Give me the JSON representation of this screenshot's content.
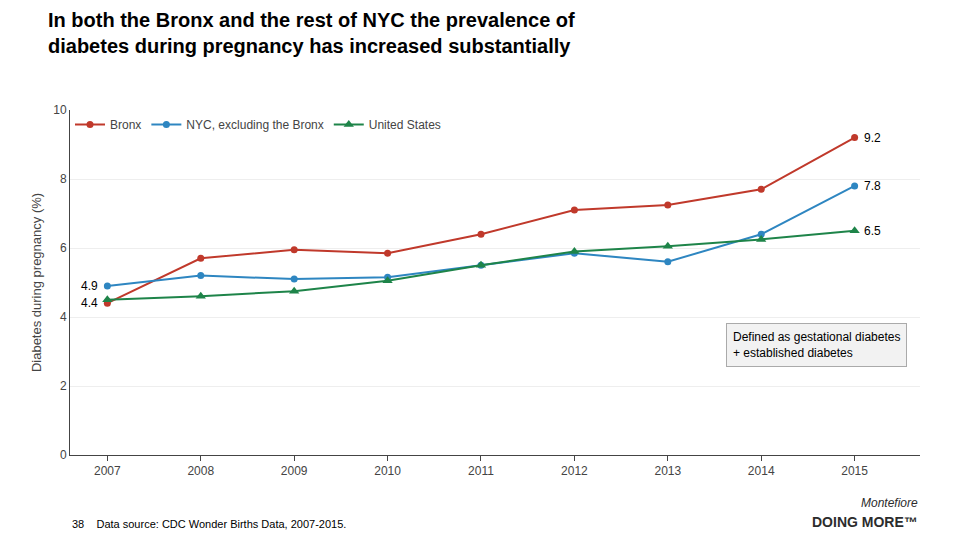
{
  "chart_data": {
    "type": "line",
    "title": "In both the Bronx and the rest of NYC the prevalence of\ndiabetes during pregnancy has increased substantially",
    "ylabel": "Diabetes during pregnancy (%)",
    "x": [
      2007,
      2008,
      2009,
      2010,
      2011,
      2012,
      2013,
      2014,
      2015
    ],
    "series": [
      {
        "name": "Bronx",
        "color": "#c0392b",
        "marker": "circle",
        "values": [
          4.4,
          5.7,
          5.95,
          5.85,
          6.4,
          7.1,
          7.25,
          7.7,
          9.2
        ]
      },
      {
        "name": "NYC, excluding the Bronx",
        "color": "#2e86c1",
        "marker": "circle",
        "values": [
          4.9,
          5.2,
          5.1,
          5.15,
          5.5,
          5.85,
          5.6,
          6.4,
          7.8
        ]
      },
      {
        "name": "United States",
        "color": "#1e8449",
        "marker": "triangle",
        "values": [
          4.5,
          4.6,
          4.75,
          5.05,
          5.5,
          5.9,
          6.05,
          6.25,
          6.5
        ]
      }
    ],
    "xlim": [
      2006.6,
      2015.7
    ],
    "xticks": [
      2007,
      2008,
      2009,
      2010,
      2011,
      2012,
      2013,
      2014,
      2015
    ],
    "ylim": [
      0,
      10
    ],
    "yticks": [
      0,
      2,
      4,
      6,
      8,
      10
    ],
    "grid": true,
    "legend": "upper left",
    "annotations": [
      {
        "text": "4.9",
        "x": 2007,
        "y": 4.9
      },
      {
        "text": "4.4",
        "x": 2007,
        "y": 4.4
      },
      {
        "text": "9.2",
        "x": 2015,
        "y": 9.2
      },
      {
        "text": "7.8",
        "x": 2015,
        "y": 7.8
      },
      {
        "text": "6.5",
        "x": 2015,
        "y": 6.5
      }
    ],
    "note": "Defined as gestational diabetes\n+ established diabetes",
    "page_number": "38",
    "footnote": "Data source: CDC Wonder Births Data, 2007-2015.",
    "logo": [
      "Montefiore",
      "DOING MORE™"
    ]
  }
}
